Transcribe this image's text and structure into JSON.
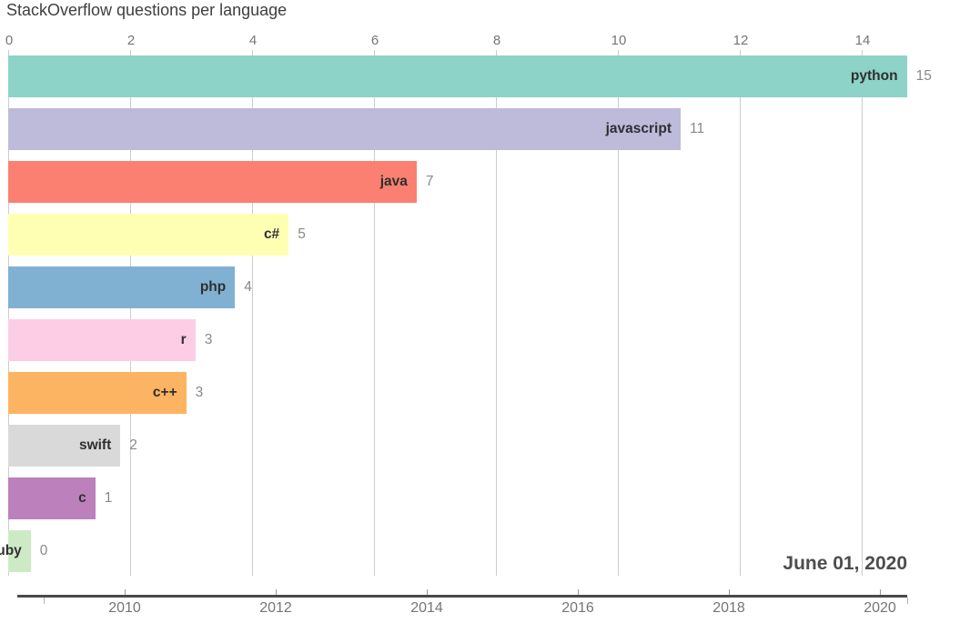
{
  "title": "StackOverflow questions per language",
  "frame": {
    "date_label": "June 01, 2020"
  },
  "chart_data": {
    "type": "bar",
    "orientation": "horizontal",
    "title": "StackOverflow questions per language",
    "frame_label": "June 01, 2020",
    "categories": [
      "python",
      "javascript",
      "java",
      "c#",
      "php",
      "r",
      "c++",
      "swift",
      "c",
      "ruby"
    ],
    "values": [
      15,
      11,
      7,
      5,
      4,
      3,
      3,
      2,
      1,
      0
    ],
    "bar_lengths_axis_units": [
      14.74,
      11.03,
      6.7,
      4.6,
      3.72,
      3.07,
      2.92,
      1.84,
      1.43,
      0.37
    ],
    "bar_colors": [
      "#8dd3c7",
      "#bebada",
      "#fb8072",
      "#ffffb3",
      "#80b1d3",
      "#fccde5",
      "#fdb462",
      "#d9d9d9",
      "#bc80bd",
      "#ccebc5"
    ],
    "value_axis": {
      "position": "top",
      "ticks": [
        0,
        2,
        4,
        6,
        8,
        10,
        12,
        14
      ],
      "grid": true
    },
    "time_axis": {
      "position": "bottom",
      "ticks": [
        2010,
        2012,
        2014,
        2016,
        2018,
        2020
      ]
    },
    "legend": false
  },
  "colors": {
    "grid": "#cccccc",
    "axis_line": "#4a4a4a",
    "tick_label": "#757575",
    "bar_label": "#2f2f2f",
    "value_label": "#888888",
    "title": "#3f3f3f",
    "date_label": "#4d4d4d"
  }
}
